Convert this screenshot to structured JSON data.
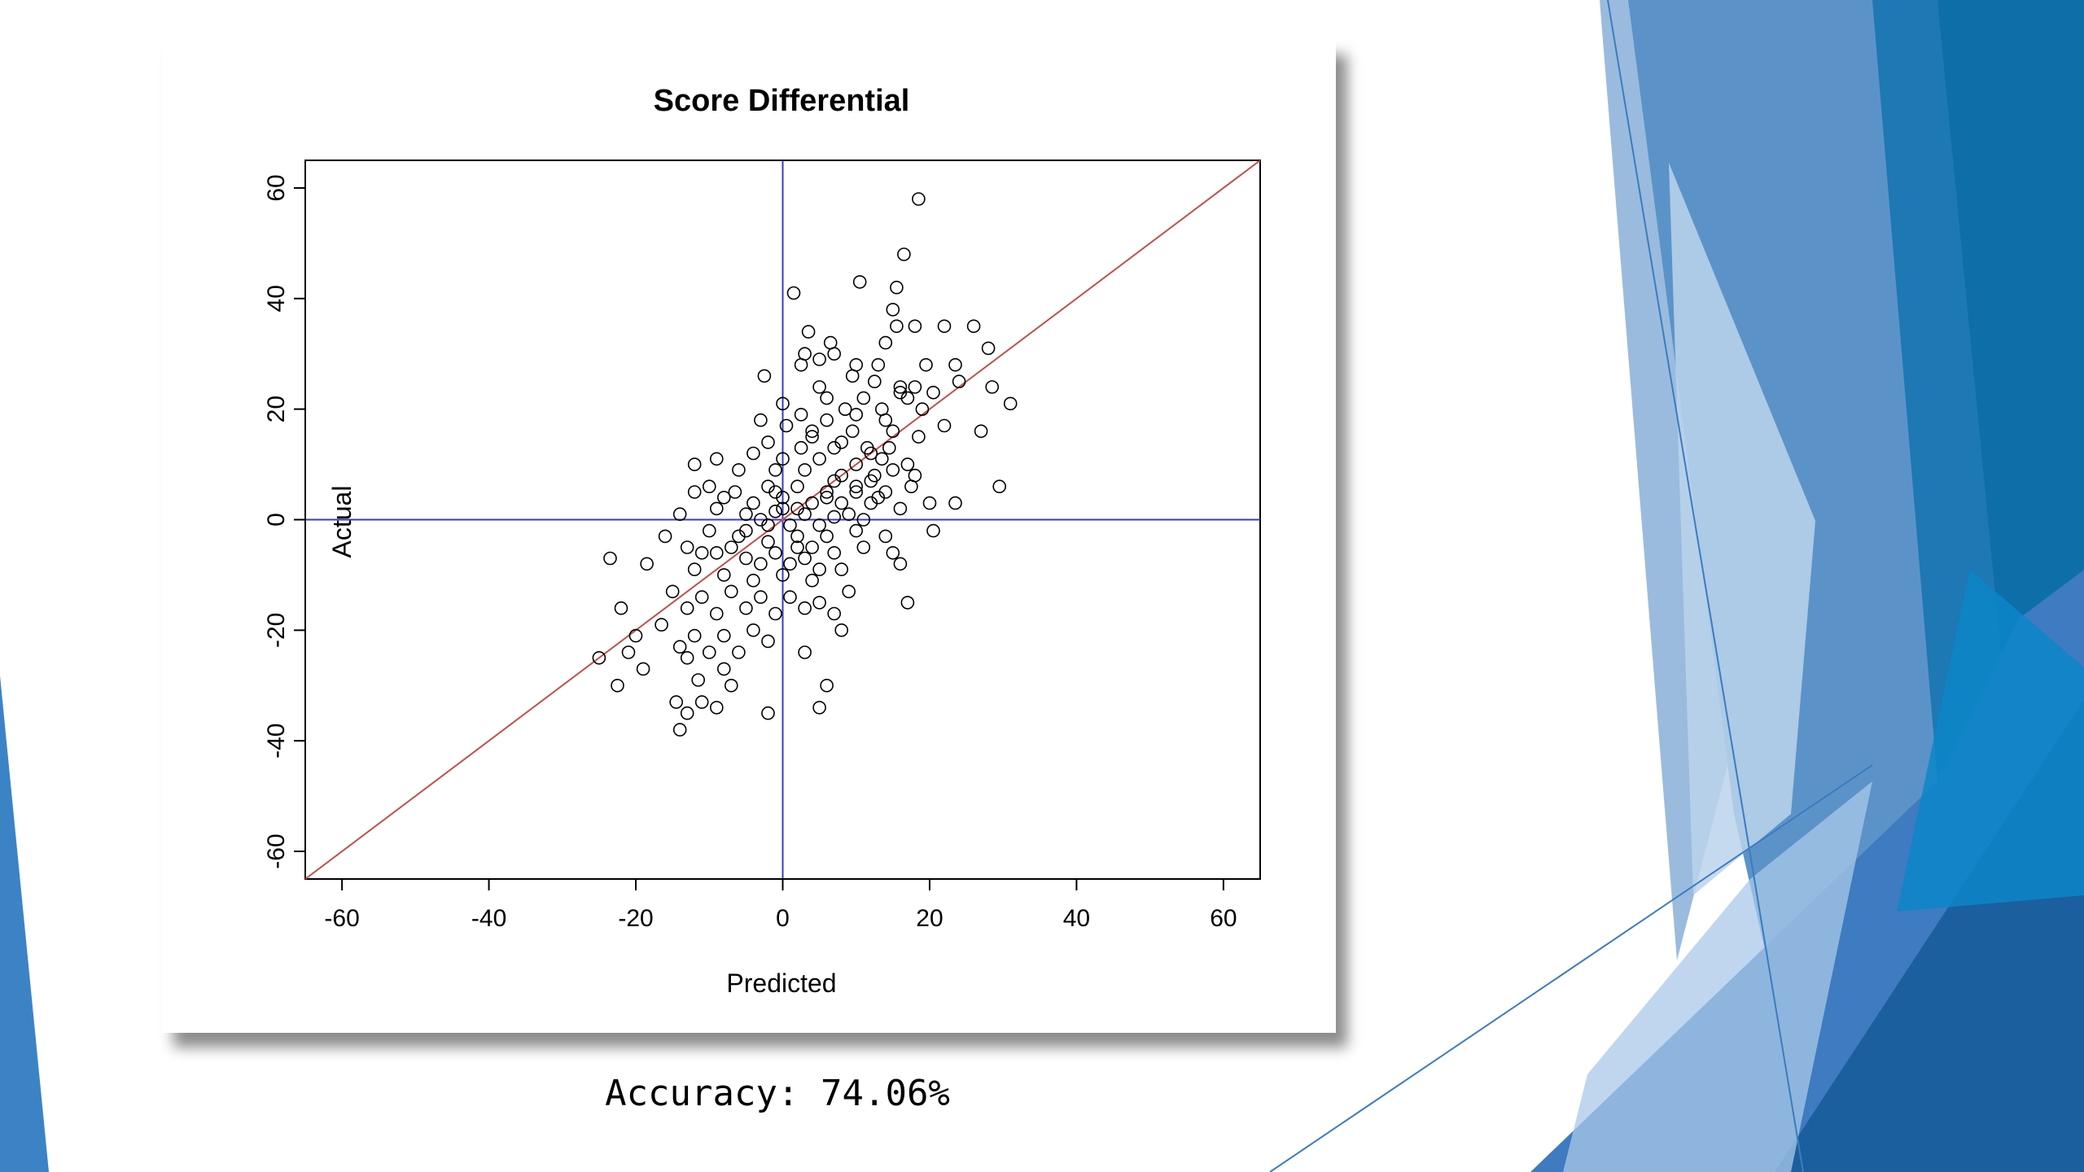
{
  "caption": "Accuracy: 74.06%",
  "colors": {
    "accent_blue": "#2e6fb5",
    "reference_line": "#c0504d",
    "zero_lines": "#3b3bbf",
    "point_stroke": "#000000"
  },
  "chart_data": {
    "type": "scatter",
    "title": "Score Differential",
    "xlabel": "Predicted",
    "ylabel": "Actual",
    "xlim": [
      -65,
      65
    ],
    "ylim": [
      -65,
      65
    ],
    "xticks": [
      -60,
      -40,
      -20,
      0,
      20,
      40,
      60
    ],
    "yticks": [
      -60,
      -40,
      -20,
      0,
      20,
      40,
      60
    ],
    "xtick_labels": [
      "-60",
      "-40",
      "-20",
      "0",
      "20",
      "40",
      "60"
    ],
    "ytick_labels": [
      "-60",
      "-40",
      "-20",
      "0",
      "20",
      "40",
      "60"
    ],
    "reference_lines": {
      "diagonal_y_equals_x": true,
      "horizontal_at": 0,
      "vertical_at": 0
    },
    "grid": false,
    "points": [
      [
        18.5,
        58
      ],
      [
        16.5,
        48
      ],
      [
        10.5,
        43
      ],
      [
        1.5,
        41
      ],
      [
        15.5,
        42
      ],
      [
        15,
        38
      ],
      [
        15.5,
        35
      ],
      [
        18,
        35
      ],
      [
        22,
        35
      ],
      [
        26,
        35
      ],
      [
        3.5,
        34
      ],
      [
        6.5,
        32
      ],
      [
        14,
        32
      ],
      [
        3,
        30
      ],
      [
        5,
        29
      ],
      [
        28,
        31
      ],
      [
        2.5,
        28
      ],
      [
        7,
        30
      ],
      [
        10,
        28
      ],
      [
        13,
        28
      ],
      [
        19.5,
        28
      ],
      [
        23.5,
        28
      ],
      [
        -2.5,
        26
      ],
      [
        9.5,
        26
      ],
      [
        12.5,
        25
      ],
      [
        16,
        24
      ],
      [
        24,
        25
      ],
      [
        28.5,
        24
      ],
      [
        31,
        21
      ],
      [
        5,
        24
      ],
      [
        11,
        22
      ],
      [
        17,
        22
      ],
      [
        20.5,
        23
      ],
      [
        8.5,
        20
      ],
      [
        13.5,
        20
      ],
      [
        0,
        21
      ],
      [
        2.5,
        19
      ],
      [
        19,
        20
      ],
      [
        6,
        18
      ],
      [
        22,
        17
      ],
      [
        27,
        16
      ],
      [
        -3,
        18
      ],
      [
        0.5,
        17
      ],
      [
        4,
        15
      ],
      [
        9.5,
        16
      ],
      [
        15,
        16
      ],
      [
        18.5,
        15
      ],
      [
        -2,
        14
      ],
      [
        2.5,
        13
      ],
      [
        7,
        13
      ],
      [
        11.5,
        13
      ],
      [
        14.5,
        13
      ],
      [
        -4,
        12
      ],
      [
        0,
        11
      ],
      [
        5,
        11
      ],
      [
        10,
        10
      ],
      [
        13.5,
        11
      ],
      [
        17,
        10
      ],
      [
        -12,
        10
      ],
      [
        -9,
        11
      ],
      [
        -6,
        9
      ],
      [
        -1,
        9
      ],
      [
        3,
        9
      ],
      [
        8,
        8
      ],
      [
        12.5,
        8
      ],
      [
        18,
        8
      ],
      [
        -10,
        6
      ],
      [
        -6.5,
        5
      ],
      [
        -2,
        6
      ],
      [
        2,
        6
      ],
      [
        6,
        5
      ],
      [
        10,
        6
      ],
      [
        14,
        5
      ],
      [
        17.5,
        6
      ],
      [
        29.5,
        6
      ],
      [
        -12,
        5
      ],
      [
        -8,
        4
      ],
      [
        -4,
        3
      ],
      [
        0,
        4
      ],
      [
        4,
        3
      ],
      [
        8,
        3
      ],
      [
        12,
        3
      ],
      [
        16,
        2
      ],
      [
        20,
        3
      ],
      [
        23.5,
        3
      ],
      [
        -9,
        2
      ],
      [
        -5,
        1
      ],
      [
        -1,
        1.5
      ],
      [
        3,
        1
      ],
      [
        7,
        0.5
      ],
      [
        11,
        0
      ],
      [
        -14,
        1
      ],
      [
        -16,
        -3
      ],
      [
        -10,
        -2
      ],
      [
        -6,
        -3
      ],
      [
        -2,
        -4
      ],
      [
        2,
        -3
      ],
      [
        6,
        -3
      ],
      [
        10,
        -2
      ],
      [
        14,
        -3
      ],
      [
        20.5,
        -2
      ],
      [
        -13,
        -5
      ],
      [
        -9,
        -6
      ],
      [
        -5,
        -7
      ],
      [
        -1,
        -6
      ],
      [
        3,
        -7
      ],
      [
        7,
        -6
      ],
      [
        11,
        -5
      ],
      [
        15,
        -6
      ],
      [
        -23.5,
        -7
      ],
      [
        -18.5,
        -8
      ],
      [
        -12,
        -9
      ],
      [
        -8,
        -10
      ],
      [
        -4,
        -11
      ],
      [
        0,
        -10
      ],
      [
        4,
        -11
      ],
      [
        8,
        -9
      ],
      [
        16,
        -8
      ],
      [
        -15,
        -13
      ],
      [
        -11,
        -14
      ],
      [
        -7,
        -13
      ],
      [
        -3,
        -14
      ],
      [
        1,
        -14
      ],
      [
        5,
        -15
      ],
      [
        9,
        -13
      ],
      [
        -13,
        -16
      ],
      [
        -9,
        -17
      ],
      [
        -5,
        -16
      ],
      [
        -1,
        -17
      ],
      [
        3,
        -16
      ],
      [
        7,
        -17
      ],
      [
        17,
        -15
      ],
      [
        -22,
        -16
      ],
      [
        -16.5,
        -19
      ],
      [
        -12,
        -21
      ],
      [
        -8,
        -21
      ],
      [
        -4,
        -20
      ],
      [
        8,
        -20
      ],
      [
        -20,
        -21
      ],
      [
        -14,
        -23
      ],
      [
        -10,
        -24
      ],
      [
        -6,
        -24
      ],
      [
        -2,
        -22
      ],
      [
        3,
        -24
      ],
      [
        -21,
        -24
      ],
      [
        -25,
        -25
      ],
      [
        -19,
        -27
      ],
      [
        -13,
        -25
      ],
      [
        -8,
        -27
      ],
      [
        -22.5,
        -30
      ],
      [
        -11.5,
        -29
      ],
      [
        -7,
        -30
      ],
      [
        6,
        -30
      ],
      [
        -11,
        -33
      ],
      [
        -14.5,
        -33
      ],
      [
        -13,
        -35
      ],
      [
        -9,
        -34
      ],
      [
        -2,
        -35
      ],
      [
        5,
        -34
      ],
      [
        -14,
        -38
      ],
      [
        -5,
        -2
      ],
      [
        -3,
        0
      ],
      [
        1,
        -1
      ],
      [
        5,
        -1
      ],
      [
        9,
        1
      ],
      [
        13,
        4
      ],
      [
        -7,
        -5
      ],
      [
        -3,
        -8
      ],
      [
        1,
        -8
      ],
      [
        5,
        -9
      ],
      [
        -11,
        -6
      ],
      [
        2,
        2
      ],
      [
        6,
        4
      ],
      [
        10,
        5
      ],
      [
        12,
        12
      ],
      [
        8,
        14
      ],
      [
        4,
        16
      ],
      [
        6,
        22
      ],
      [
        10,
        19
      ],
      [
        14,
        18
      ],
      [
        16,
        23
      ],
      [
        18,
        24
      ],
      [
        12,
        7
      ],
      [
        15,
        9
      ],
      [
        4,
        -5
      ],
      [
        -2,
        -1
      ],
      [
        0,
        2
      ],
      [
        2,
        -5
      ],
      [
        -1,
        5
      ],
      [
        7,
        7
      ]
    ]
  }
}
